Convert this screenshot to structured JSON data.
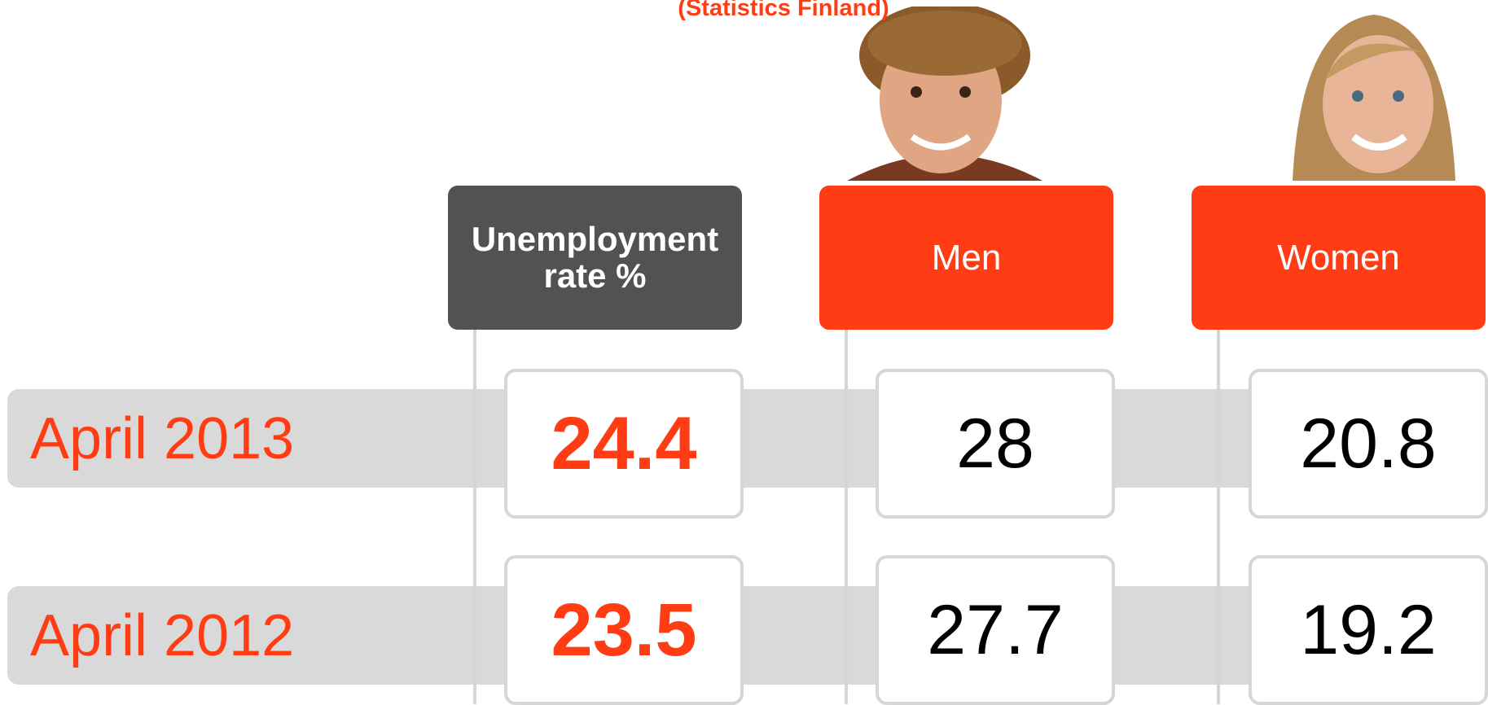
{
  "subtitle": "(Statistics Finland)",
  "table": {
    "columns": [
      "Unemployment rate %",
      "Men",
      "Women"
    ],
    "rows": [
      {
        "label": "April 2013",
        "values": [
          24.4,
          28,
          20.8
        ]
      },
      {
        "label": "April 2012",
        "values": [
          23.5,
          27.7,
          19.2
        ]
      }
    ]
  }
}
